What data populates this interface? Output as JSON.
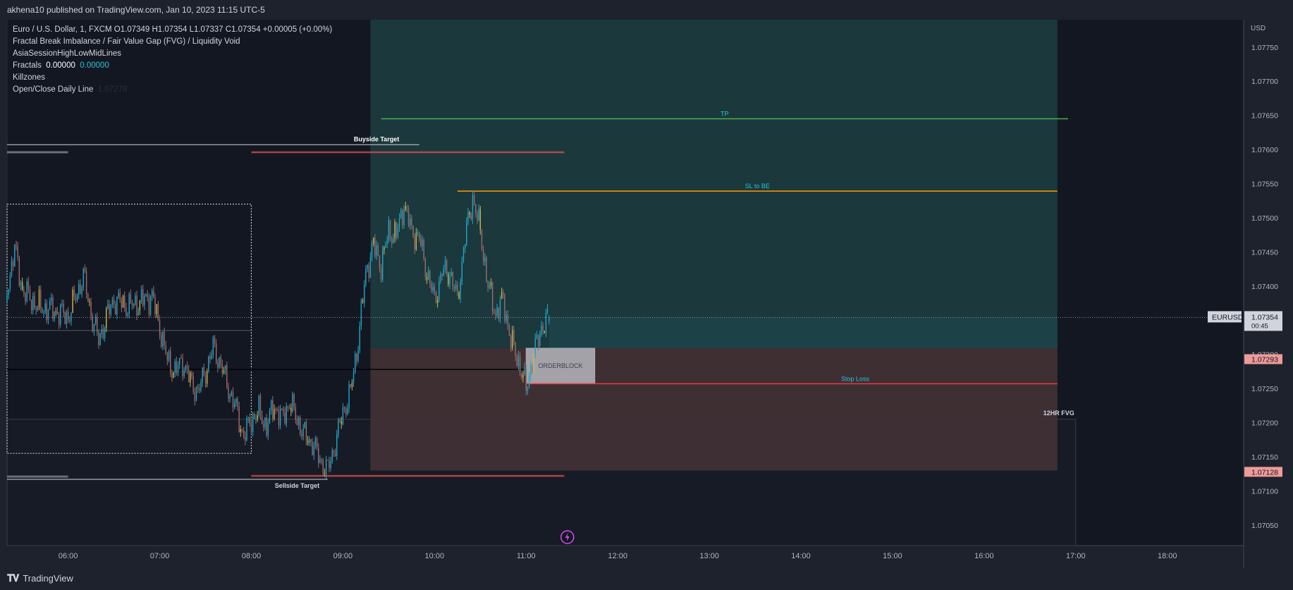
{
  "header": {
    "title": "akhena10 published on TradingView.com, Jan 10, 2023 11:15 UTC-5"
  },
  "legend": {
    "symbol_line": "Euro / U.S. Dollar, 1, FXCM  O1.07349  H1.07354  L1.07337  C1.07354  +0.00005 (+0.00%)",
    "indicator1": "Fractal Break Imbalance / Fair Value Gap (FVG) / Liquidity Void",
    "indicator2": "AsiaSessionHighLowMidLines",
    "fractals_label": "Fractals",
    "fractals_v1": "0.00000",
    "fractals_v2": "0.00000",
    "indicator4": "Killzones",
    "openclose_label": "Open/Close Daily Line",
    "openclose_value": "1.07278"
  },
  "footer": {
    "brand": "TradingView"
  },
  "colors": {
    "background": "#131722",
    "up": "#26a69a",
    "down": "#ef5350",
    "candle_up": "#1fa6c7",
    "candle_down": "#9c6b6b",
    "candle_hi": "#c6b84a",
    "target_fill": "#1b3a3e",
    "stop_fill": "#3f3034",
    "tp_line": "#4caf50",
    "sl_line": "#ff9800",
    "stoploss_line": "#f23645",
    "price_badge": "#ef9a9a"
  },
  "chart_data": {
    "type": "candlestick",
    "symbol": "EURUSD",
    "timeframe": "1",
    "x_ticks": [
      "06:00",
      "07:00",
      "08:00",
      "09:00",
      "10:00",
      "11:00",
      "12:00",
      "13:00",
      "14:00",
      "15:00",
      "16:00",
      "17:00",
      "18:00"
    ],
    "y_axis_unit": "USD",
    "y_ticks": [
      "1.07750",
      "1.07700",
      "1.07650",
      "1.07600",
      "1.07550",
      "1.07500",
      "1.07450",
      "1.07400",
      "1.07300",
      "1.07250",
      "1.07200",
      "1.07150",
      "1.07100",
      "1.07050"
    ],
    "ylim": [
      1.0702,
      1.0779
    ],
    "time_start": "05:20",
    "time_end": "18:50",
    "ohlc": {
      "open": 1.07349,
      "high": 1.07354,
      "low": 1.07337,
      "close": 1.07354
    },
    "last_price": {
      "symbol": "EURUSD",
      "price": "1.07354",
      "countdown": "00:45"
    },
    "price_badges": [
      {
        "price": "1.07293"
      },
      {
        "price": "1.07128"
      }
    ],
    "price_path": [
      [
        "05:20",
        1.07395
      ],
      [
        "05:25",
        1.07455
      ],
      [
        "05:30",
        1.07395
      ],
      [
        "05:40",
        1.0737
      ],
      [
        "05:50",
        1.07365
      ],
      [
        "06:00",
        1.07355
      ],
      [
        "06:05",
        1.07385
      ],
      [
        "06:10",
        1.07415
      ],
      [
        "06:15",
        1.0736
      ],
      [
        "06:20",
        1.0732
      ],
      [
        "06:25",
        1.07355
      ],
      [
        "06:30",
        1.0738
      ],
      [
        "06:40",
        1.0737
      ],
      [
        "06:50",
        1.0738
      ],
      [
        "06:55",
        1.07385
      ],
      [
        "07:00",
        1.0734
      ],
      [
        "07:05",
        1.0729
      ],
      [
        "07:10",
        1.07275
      ],
      [
        "07:15",
        1.0729
      ],
      [
        "07:20",
        1.0726
      ],
      [
        "07:25",
        1.07245
      ],
      [
        "07:30",
        1.07275
      ],
      [
        "07:35",
        1.0731
      ],
      [
        "07:40",
        1.07285
      ],
      [
        "07:45",
        1.0725
      ],
      [
        "07:50",
        1.0722
      ],
      [
        "07:55",
        1.0718
      ],
      [
        "08:00",
        1.07205
      ],
      [
        "08:05",
        1.07215
      ],
      [
        "08:10",
        1.07195
      ],
      [
        "08:15",
        1.07225
      ],
      [
        "08:20",
        1.07205
      ],
      [
        "08:25",
        1.0723
      ],
      [
        "08:30",
        1.07205
      ],
      [
        "08:35",
        1.0718
      ],
      [
        "08:40",
        1.0717
      ],
      [
        "08:45",
        1.07145
      ],
      [
        "08:50",
        1.0713
      ],
      [
        "08:55",
        1.0717
      ],
      [
        "09:00",
        1.07215
      ],
      [
        "09:05",
        1.07245
      ],
      [
        "09:10",
        1.0732
      ],
      [
        "09:15",
        1.0742
      ],
      [
        "09:20",
        1.0746
      ],
      [
        "09:25",
        1.0743
      ],
      [
        "09:30",
        1.0748
      ],
      [
        "09:35",
        1.07475
      ],
      [
        "09:40",
        1.0752
      ],
      [
        "09:45",
        1.0748
      ],
      [
        "09:50",
        1.0747
      ],
      [
        "09:55",
        1.0742
      ],
      [
        "10:00",
        1.0738
      ],
      [
        "10:05",
        1.0742
      ],
      [
        "10:10",
        1.0742
      ],
      [
        "10:15",
        1.0738
      ],
      [
        "10:20",
        1.0747
      ],
      [
        "10:25",
        1.0753
      ],
      [
        "10:30",
        1.0748
      ],
      [
        "10:35",
        1.074
      ],
      [
        "10:40",
        1.0736
      ],
      [
        "10:45",
        1.0738
      ],
      [
        "10:50",
        1.0732
      ],
      [
        "10:55",
        1.0729
      ],
      [
        "11:00",
        1.0725
      ],
      [
        "11:05",
        1.073
      ],
      [
        "11:10",
        1.0734
      ],
      [
        "11:15",
        1.07354
      ]
    ],
    "annotations": [
      {
        "label": "TP",
        "price": 1.07645
      },
      {
        "label": "SL to BE",
        "price": 1.07539
      },
      {
        "label": "Stop Loss",
        "price": 1.07257
      },
      {
        "label": "Buyside Target",
        "price": 1.07607
      },
      {
        "label": "Sellside Target",
        "price": 1.07117
      },
      {
        "label": "ORDERBLOCK",
        "price_top": 1.07309,
        "price_bottom": 1.07257,
        "time_start": "11:00",
        "time_end": "11:45"
      },
      {
        "label": "12HR FVG",
        "price_top": 1.07205,
        "time_end": "17:00"
      }
    ]
  }
}
